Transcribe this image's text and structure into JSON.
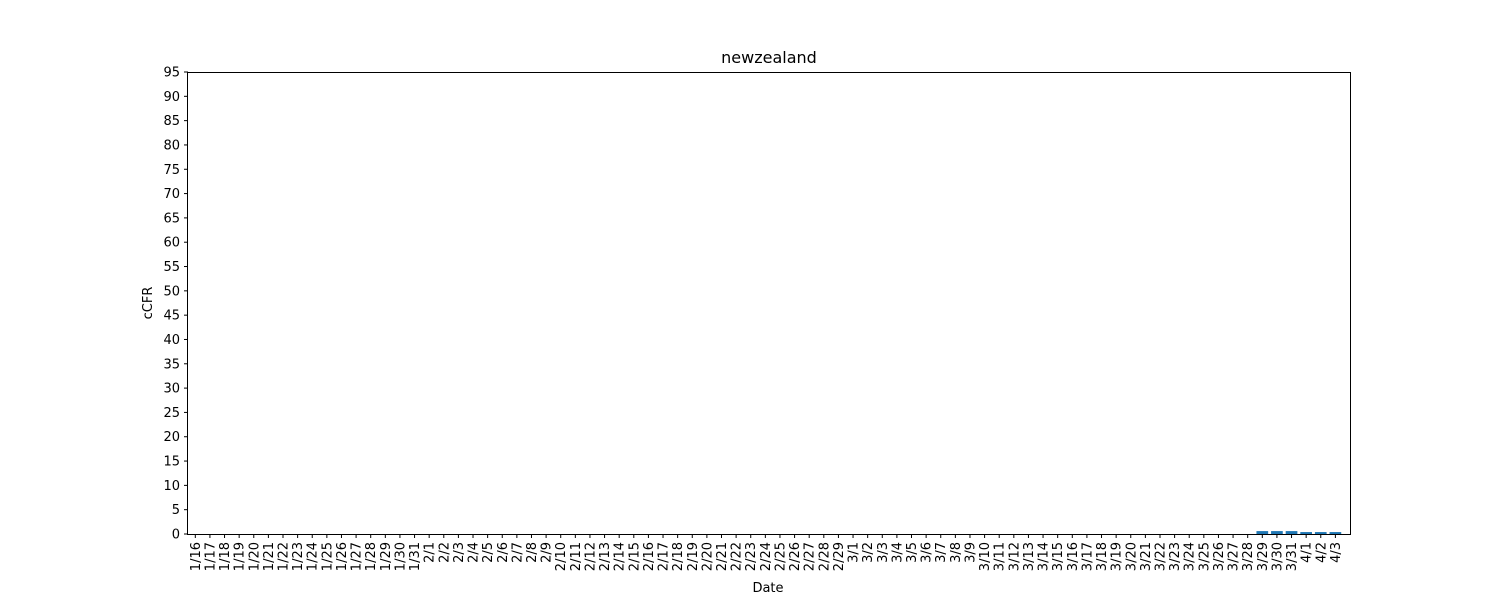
{
  "chart_data": {
    "type": "bar",
    "title": "newzealand",
    "xlabel": "Date",
    "ylabel": "cCFR",
    "ylim": [
      0,
      95
    ],
    "yticks": [
      0,
      5,
      10,
      15,
      20,
      25,
      30,
      35,
      40,
      45,
      50,
      55,
      60,
      65,
      70,
      75,
      80,
      85,
      90,
      95
    ],
    "grid": false,
    "bar_color": "#1f77b4",
    "categories": [
      "1/16",
      "1/17",
      "1/18",
      "1/19",
      "1/20",
      "1/21",
      "1/22",
      "1/23",
      "1/24",
      "1/25",
      "1/26",
      "1/27",
      "1/28",
      "1/29",
      "1/30",
      "1/31",
      "2/1",
      "2/2",
      "2/3",
      "2/4",
      "2/5",
      "2/6",
      "2/7",
      "2/8",
      "2/9",
      "2/10",
      "2/11",
      "2/12",
      "2/13",
      "2/14",
      "2/15",
      "2/16",
      "2/17",
      "2/18",
      "2/19",
      "2/20",
      "2/21",
      "2/22",
      "2/23",
      "2/24",
      "2/25",
      "2/26",
      "2/27",
      "2/28",
      "2/29",
      "3/1",
      "3/2",
      "3/3",
      "3/4",
      "3/5",
      "3/6",
      "3/7",
      "3/8",
      "3/9",
      "3/10",
      "3/11",
      "3/12",
      "3/13",
      "3/14",
      "3/15",
      "3/16",
      "3/17",
      "3/18",
      "3/19",
      "3/20",
      "3/21",
      "3/22",
      "3/23",
      "3/24",
      "3/25",
      "3/26",
      "3/27",
      "3/28",
      "3/29",
      "3/30",
      "3/31",
      "4/1",
      "4/2",
      "4/3"
    ],
    "values": [
      0,
      0,
      0,
      0,
      0,
      0,
      0,
      0,
      0,
      0,
      0,
      0,
      0,
      0,
      0,
      0,
      0,
      0,
      0,
      0,
      0,
      0,
      0,
      0,
      0,
      0,
      0,
      0,
      0,
      0,
      0,
      0,
      0,
      0,
      0,
      0,
      0,
      0,
      0,
      0,
      0,
      0,
      0,
      0,
      0,
      0,
      0,
      0,
      0,
      0,
      0,
      0,
      0,
      0,
      0,
      0,
      0,
      0,
      0,
      0,
      0,
      0,
      0,
      0,
      0,
      0,
      0,
      0,
      0,
      0,
      0,
      0,
      0,
      0.6,
      0.6,
      0.6,
      0.4,
      0.4,
      0.4
    ]
  }
}
